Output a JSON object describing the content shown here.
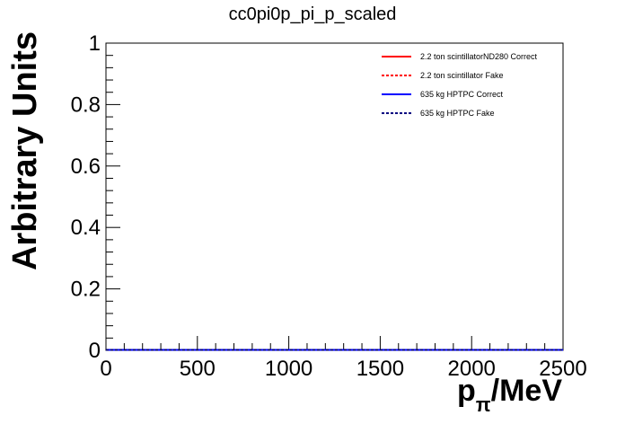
{
  "chart_data": {
    "type": "line",
    "title": "cc0pi0p_pi_p_scaled",
    "xlabel_main": "p",
    "xlabel_sub": "π",
    "xlabel_suffix": "/MeV",
    "ylabel": "Arbitrary Units",
    "xlim": [
      0,
      2500
    ],
    "ylim": [
      0,
      1
    ],
    "x_ticks": [
      0,
      500,
      1000,
      1500,
      2000,
      2500
    ],
    "x_tick_labels": [
      "0",
      "500",
      "1000",
      "1500",
      "2000",
      "2500"
    ],
    "y_ticks": [
      0,
      0.2,
      0.4,
      0.6,
      0.8,
      1
    ],
    "y_tick_labels": [
      "0",
      "0.2",
      "0.4",
      "0.6",
      "0.8",
      "1"
    ],
    "grid": false,
    "legend_position": "top-right",
    "series": [
      {
        "name": "2.2 ton scintillatorND280 Correct",
        "color": "#ff0000",
        "dash": "solid",
        "x": [
          0,
          2500
        ],
        "y": [
          0,
          0
        ]
      },
      {
        "name": "2.2 ton scintillator Fake",
        "color": "#ff0000",
        "dash": "dotted",
        "x": [
          0,
          2500
        ],
        "y": [
          0,
          0
        ]
      },
      {
        "name": "635 kg HPTPC Correct",
        "color": "#0000ff",
        "dash": "solid",
        "x": [
          0,
          2500
        ],
        "y": [
          0,
          0
        ]
      },
      {
        "name": "635 kg HPTPC Fake",
        "color": "#000080",
        "dash": "dotted",
        "x": [
          0,
          2500
        ],
        "y": [
          0,
          0
        ]
      }
    ]
  }
}
